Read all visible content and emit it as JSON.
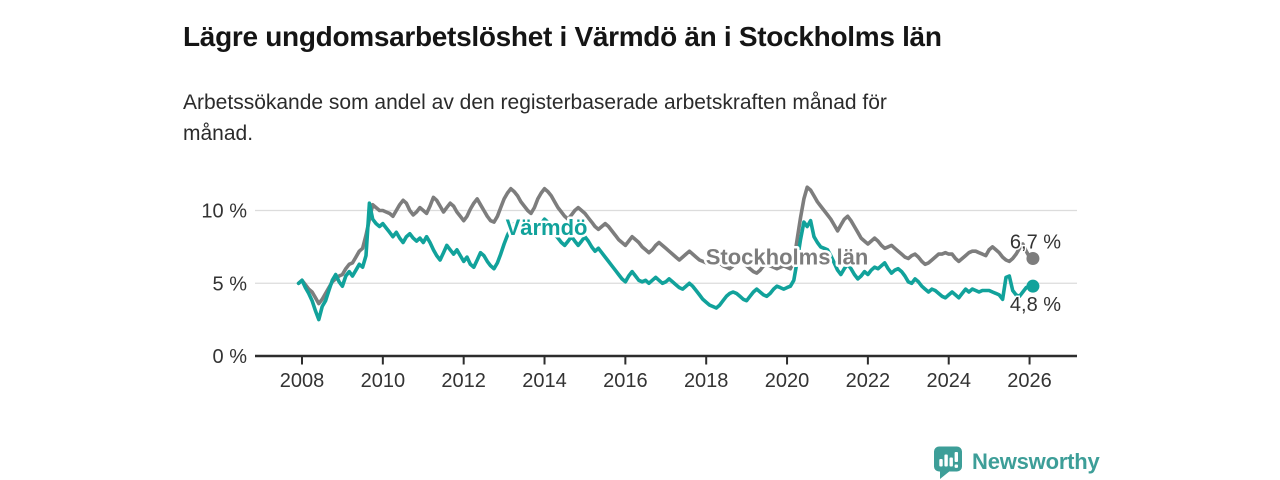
{
  "header": {
    "title": "Lägre ungdomsarbetslöshet i Värmdö än i Stockholms län",
    "subtitle_line1": "Arbetssökande som andel av den registerbaserade arbetskraften månad för",
    "subtitle_line2": "månad."
  },
  "footer": {
    "brand": "Newsworthy",
    "brand_color": "#3d9e98",
    "logo_icon": "bar-chart-speech-bubble"
  },
  "colors": {
    "varmdo_line": "#11a29b",
    "stockholm_line": "#7d7d7d",
    "grid": "#dcdcdc",
    "axis": "#2d2d2d",
    "tick_text": "#333333",
    "value_text": "#333333"
  },
  "chart_data": {
    "type": "line",
    "title": "Lägre ungdomsarbetslöshet i Värmdö än i Stockholms län",
    "subtitle": "Arbetssökande som andel av den registerbaserade arbetskraften månad för månad.",
    "xlabel": "",
    "ylabel": "",
    "grid": "horizontal only",
    "xlim": [
      2006.85,
      2027.2
    ],
    "ylim": [
      0,
      12.5
    ],
    "x_ticks": [
      2008,
      2010,
      2012,
      2014,
      2016,
      2018,
      2020,
      2022,
      2024,
      2026
    ],
    "y_ticks": [
      {
        "value": 0,
        "label": "0 %"
      },
      {
        "value": 5,
        "label": "5 %"
      },
      {
        "value": 10,
        "label": "10 %"
      }
    ],
    "annotations": [
      {
        "text": "Värmdö",
        "x": 2014.05,
        "y": 8.85,
        "color": "#11a29b"
      },
      {
        "text": "Stockholms län",
        "x": 2020.0,
        "y": 6.85,
        "color": "#7d7d7d"
      }
    ],
    "series": [
      {
        "name": "Stockholms län",
        "color": "#7d7d7d",
        "end_label": "6,7 %",
        "end_value": 6.7,
        "label_side": "above",
        "start_year": 2007.9167,
        "step_years": 0.083333,
        "values": [
          5.0,
          5.2,
          4.9,
          4.6,
          4.4,
          4.0,
          3.6,
          3.9,
          4.3,
          4.7,
          5.1,
          5.3,
          5.5,
          5.6,
          6.0,
          6.3,
          6.4,
          6.8,
          7.2,
          7.4,
          8.3,
          9.4,
          10.4,
          10.2,
          10.0,
          10.0,
          9.9,
          9.8,
          9.6,
          10.0,
          10.4,
          10.7,
          10.5,
          10.0,
          9.7,
          9.9,
          10.2,
          10.0,
          9.8,
          10.3,
          10.9,
          10.7,
          10.3,
          9.9,
          10.2,
          10.5,
          10.3,
          9.9,
          9.6,
          9.3,
          9.6,
          10.1,
          10.5,
          10.8,
          10.4,
          10.0,
          9.6,
          9.3,
          9.2,
          9.6,
          10.2,
          10.8,
          11.2,
          11.5,
          11.3,
          11.0,
          10.6,
          10.3,
          10.0,
          9.8,
          10.2,
          10.8,
          11.2,
          11.5,
          11.3,
          11.0,
          10.6,
          10.2,
          9.9,
          9.6,
          9.4,
          9.7,
          10.0,
          10.2,
          10.0,
          9.8,
          9.5,
          9.2,
          8.9,
          8.7,
          8.9,
          9.1,
          8.9,
          8.6,
          8.3,
          8.0,
          7.8,
          7.6,
          7.9,
          8.2,
          8.0,
          7.8,
          7.5,
          7.3,
          7.1,
          7.3,
          7.6,
          7.8,
          7.6,
          7.4,
          7.2,
          7.0,
          6.8,
          6.6,
          6.8,
          7.0,
          7.2,
          7.0,
          6.8,
          6.6,
          6.5,
          6.4,
          6.6,
          6.8,
          6.6,
          6.4,
          6.2,
          6.1,
          6.0,
          6.2,
          6.4,
          6.5,
          6.4,
          6.2,
          6.0,
          5.8,
          5.7,
          5.9,
          6.2,
          6.3,
          6.2,
          6.1,
          6.0,
          6.1,
          6.2,
          6.1,
          6.0,
          6.5,
          8.0,
          9.5,
          10.8,
          11.6,
          11.4,
          11.0,
          10.6,
          10.3,
          10.0,
          9.7,
          9.4,
          9.0,
          8.6,
          9.0,
          9.4,
          9.6,
          9.3,
          8.9,
          8.5,
          8.1,
          7.9,
          7.7,
          7.9,
          8.1,
          7.9,
          7.6,
          7.4,
          7.5,
          7.6,
          7.4,
          7.2,
          7.0,
          6.8,
          6.7,
          6.9,
          7.0,
          6.8,
          6.5,
          6.3,
          6.4,
          6.6,
          6.8,
          7.0,
          7.0,
          7.1,
          7.0,
          7.0,
          6.7,
          6.5,
          6.7,
          6.9,
          7.1,
          7.2,
          7.2,
          7.1,
          7.0,
          6.9,
          7.3,
          7.5,
          7.3,
          7.1,
          6.8,
          6.6,
          6.5,
          6.7,
          7.0,
          7.4,
          7.7,
          7.2,
          6.8,
          6.7
        ]
      },
      {
        "name": "Värmdö",
        "color": "#11a29b",
        "end_label": "4,8 %",
        "end_value": 4.8,
        "label_side": "below",
        "start_year": 2007.9167,
        "step_years": 0.083333,
        "values": [
          5.0,
          5.2,
          4.7,
          4.3,
          3.8,
          3.1,
          2.5,
          3.4,
          3.8,
          4.5,
          5.2,
          5.6,
          5.1,
          4.8,
          5.5,
          5.8,
          5.5,
          5.9,
          6.3,
          6.1,
          6.9,
          10.5,
          9.4,
          9.1,
          8.9,
          9.1,
          8.8,
          8.5,
          8.2,
          8.5,
          8.1,
          7.8,
          8.2,
          8.4,
          8.1,
          7.9,
          8.1,
          7.8,
          8.2,
          7.8,
          7.3,
          6.9,
          6.6,
          7.1,
          7.6,
          7.3,
          7.0,
          7.3,
          6.9,
          6.5,
          6.8,
          6.3,
          6.1,
          6.6,
          7.1,
          6.9,
          6.5,
          6.2,
          6.0,
          6.4,
          7.0,
          7.7,
          8.3,
          8.8,
          9.1,
          8.8,
          8.5,
          8.9,
          9.3,
          9.0,
          8.6,
          8.8,
          9.1,
          9.4,
          9.2,
          8.8,
          8.4,
          8.1,
          7.8,
          7.6,
          7.9,
          8.2,
          7.9,
          7.6,
          7.9,
          8.2,
          7.9,
          7.5,
          7.2,
          7.4,
          7.1,
          6.8,
          6.5,
          6.2,
          5.9,
          5.6,
          5.3,
          5.1,
          5.5,
          5.8,
          5.5,
          5.2,
          5.1,
          5.2,
          5.0,
          5.2,
          5.4,
          5.2,
          5.0,
          5.1,
          5.3,
          5.1,
          4.9,
          4.7,
          4.6,
          4.8,
          5.0,
          4.8,
          4.5,
          4.2,
          3.9,
          3.7,
          3.5,
          3.4,
          3.3,
          3.5,
          3.8,
          4.1,
          4.3,
          4.4,
          4.3,
          4.1,
          3.9,
          3.8,
          4.1,
          4.4,
          4.6,
          4.4,
          4.2,
          4.1,
          4.3,
          4.6,
          4.8,
          4.7,
          4.6,
          4.7,
          4.8,
          5.2,
          6.5,
          8.0,
          9.2,
          8.9,
          9.3,
          8.2,
          7.8,
          7.5,
          7.4,
          7.3,
          6.9,
          6.4,
          5.9,
          5.6,
          6.0,
          6.3,
          6.0,
          5.6,
          5.3,
          5.5,
          5.8,
          5.6,
          5.9,
          6.1,
          6.0,
          6.2,
          6.4,
          6.0,
          5.7,
          5.9,
          6.0,
          5.8,
          5.5,
          5.1,
          5.0,
          5.3,
          5.1,
          4.8,
          4.6,
          4.4,
          4.6,
          4.5,
          4.3,
          4.1,
          4.0,
          4.2,
          4.4,
          4.2,
          4.0,
          4.3,
          4.6,
          4.4,
          4.6,
          4.5,
          4.4,
          4.5,
          4.5,
          4.5,
          4.4,
          4.3,
          4.2,
          3.9,
          5.4,
          5.5,
          4.5,
          4.2,
          4.1,
          4.4,
          4.7,
          4.8,
          4.8
        ]
      }
    ]
  }
}
